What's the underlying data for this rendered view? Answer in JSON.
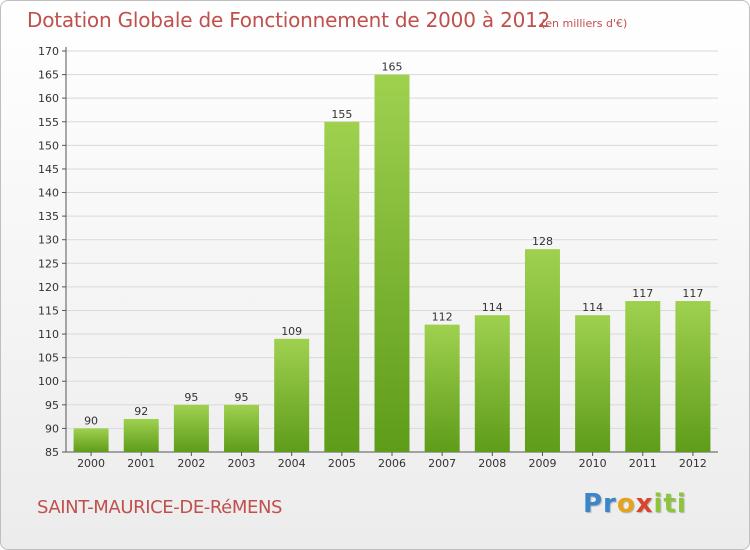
{
  "chart_data": {
    "type": "bar",
    "title": "Dotation Globale de Fonctionnement de 2000 à 2012",
    "subtitle": "(en milliers d'€)",
    "categories": [
      "2000",
      "2001",
      "2002",
      "2003",
      "2004",
      "2005",
      "2006",
      "2007",
      "2008",
      "2009",
      "2010",
      "2011",
      "2012"
    ],
    "values": [
      90,
      92,
      95,
      95,
      109,
      155,
      165,
      112,
      114,
      128,
      114,
      117,
      117
    ],
    "ylim": [
      85,
      170
    ],
    "yticks": [
      85,
      90,
      95,
      100,
      105,
      110,
      115,
      120,
      125,
      130,
      135,
      140,
      145,
      150,
      155,
      160,
      165,
      170
    ],
    "grid": true,
    "bar_color_top": "#9fd14f",
    "bar_color_bottom": "#5e9c1a"
  },
  "footer": {
    "city": "SAINT-MAURICE-DE-RéMENS",
    "logo": "Proxiti"
  },
  "colors": {
    "title": "#c0504d",
    "grid": "#d9d9d9"
  }
}
